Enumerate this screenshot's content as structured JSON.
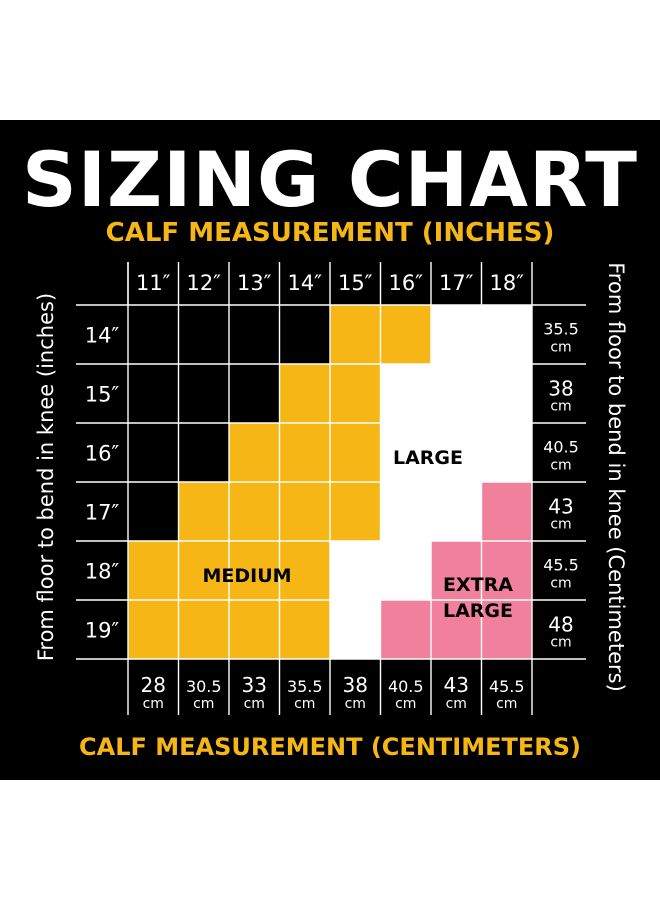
{
  "title": "SIZING CHART",
  "calf_inches_heading": "CALF MEASUREMENT (INCHES)",
  "calf_cm_heading": "CALF MEASUREMENT (CENTIMETERS)",
  "left_axis_label": "From floor to bend in knee (inches)",
  "right_axis_label": "From floor to bend in knee (Centimeters)",
  "calf_inches": [
    "11″",
    "12″",
    "13″",
    "14″",
    "15″",
    "16″",
    "17″",
    "18″"
  ],
  "calf_cm": [
    {
      "value": "28",
      "unit": "cm"
    },
    {
      "value": "30.5",
      "unit": "cm"
    },
    {
      "value": "33",
      "unit": "cm"
    },
    {
      "value": "35.5",
      "unit": "cm"
    },
    {
      "value": "38",
      "unit": "cm"
    },
    {
      "value": "40.5",
      "unit": "cm"
    },
    {
      "value": "43",
      "unit": "cm"
    },
    {
      "value": "45.5",
      "unit": "cm"
    }
  ],
  "knee_inches": [
    "14″",
    "15″",
    "16″",
    "17″",
    "18″",
    "19″"
  ],
  "knee_cm": [
    {
      "value": "35.5",
      "unit": "cm"
    },
    {
      "value": "38",
      "unit": "cm"
    },
    {
      "value": "40.5",
      "unit": "cm"
    },
    {
      "value": "43",
      "unit": "cm"
    },
    {
      "value": "45.5",
      "unit": "cm"
    },
    {
      "value": "48",
      "unit": "cm"
    }
  ],
  "colors": {
    "none": "#000000",
    "medium": "#f6b716",
    "large": "#ffffff",
    "extra_large": "#f0809b",
    "accent": "#f6b716"
  },
  "grid": [
    [
      "none",
      "none",
      "none",
      "none",
      "medium",
      "medium",
      "large",
      "large"
    ],
    [
      "none",
      "none",
      "none",
      "medium",
      "medium",
      "large",
      "large",
      "large"
    ],
    [
      "none",
      "none",
      "medium",
      "medium",
      "medium",
      "large",
      "large",
      "large"
    ],
    [
      "none",
      "medium",
      "medium",
      "medium",
      "medium",
      "large",
      "large",
      "extra_large"
    ],
    [
      "medium",
      "medium",
      "medium",
      "medium",
      "large",
      "large",
      "extra_large",
      "extra_large"
    ],
    [
      "medium",
      "medium",
      "medium",
      "medium",
      "large",
      "extra_large",
      "extra_large",
      "extra_large"
    ]
  ],
  "zone_labels": {
    "medium": "MEDIUM",
    "large": "LARGE",
    "extra_large_line1": "EXTRA",
    "extra_large_line2": "LARGE"
  }
}
